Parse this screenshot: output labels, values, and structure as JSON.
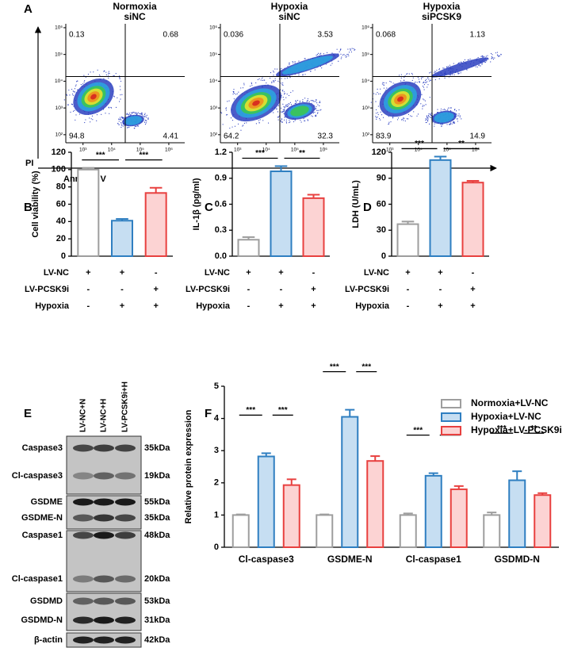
{
  "flow": {
    "panel": "A",
    "x_axis_label": "Annexin V",
    "y_axis_label": "PI",
    "log": true,
    "xlim": [
      250,
      3600000
    ],
    "ylim": [
      50,
      1400000
    ],
    "xticks": [
      {
        "value": 1000,
        "label": "10³"
      },
      {
        "value": 10000,
        "label": "10⁴"
      },
      {
        "value": 100000,
        "label": "10⁵"
      },
      {
        "value": 1000000,
        "label": "10⁶"
      }
    ],
    "yticks": [
      {
        "value": 100,
        "label": "10²"
      },
      {
        "value": 1000,
        "label": "10³"
      },
      {
        "value": 10000,
        "label": "10⁴"
      },
      {
        "value": 100000,
        "label": "10⁵"
      },
      {
        "value": 1000000,
        "label": "10⁶"
      }
    ],
    "gate": {
      "x": 30000,
      "y": 15000
    },
    "plots": [
      {
        "title": [
          "Normoxia",
          "siNC"
        ],
        "quadrants": {
          "upper_left": 0.13,
          "upper_right": 0.68,
          "lower_left": 94.8,
          "lower_right": 4.41
        }
      },
      {
        "title": [
          "Hypoxia",
          "siNC"
        ],
        "quadrants": {
          "upper_left": 0.036,
          "upper_right": 3.53,
          "lower_left": 64.2,
          "lower_right": 32.3
        }
      },
      {
        "title": [
          "Hypoxia",
          "siPCSK9"
        ],
        "quadrants": {
          "upper_left": 0.068,
          "upper_right": 1.13,
          "lower_left": 83.9,
          "lower_right": 14.9
        }
      }
    ]
  },
  "chart_data": [
    {
      "type": "bar",
      "panel": "B",
      "ylabel": "Cell viability (%)",
      "values": [
        100,
        41,
        73
      ],
      "errors": [
        2,
        2,
        6
      ],
      "colors": [
        "#9e9e9e",
        "#2f7fc1",
        "#e8403f"
      ],
      "fills": [
        "#ffffff",
        "#c6def2",
        "#fcd3d3"
      ],
      "ylim": [
        0,
        120
      ],
      "yticks": [
        0,
        20,
        40,
        60,
        80,
        100,
        120
      ],
      "significance": [
        "***",
        "***"
      ],
      "conditions": [
        {
          "label": "LV-NC",
          "signs": [
            "+",
            "+",
            "-"
          ]
        },
        {
          "label": "LV-PCSK9i",
          "signs": [
            "-",
            "-",
            "+"
          ]
        },
        {
          "label": "Hypoxia",
          "signs": [
            "-",
            "+",
            "+"
          ]
        }
      ]
    },
    {
      "type": "bar",
      "panel": "C",
      "ylabel": "IL-1β (pg/ml)",
      "values": [
        0.19,
        0.98,
        0.67
      ],
      "errors": [
        0.03,
        0.06,
        0.04
      ],
      "colors": [
        "#9e9e9e",
        "#2f7fc1",
        "#e8403f"
      ],
      "fills": [
        "#ffffff",
        "#c6def2",
        "#fcd3d3"
      ],
      "ylim": [
        0,
        1.2
      ],
      "yticks": [
        {
          "value": 0,
          "label": "0.0"
        },
        0.3,
        0.6,
        0.9,
        1.2
      ],
      "significance": [
        "***",
        "**"
      ],
      "conditions": [
        {
          "label": "LV-NC",
          "signs": [
            "+",
            "+",
            "-"
          ]
        },
        {
          "label": "LV-PCSK9i",
          "signs": [
            "-",
            "-",
            "+"
          ]
        },
        {
          "label": "Hypoxia",
          "signs": [
            "-",
            "+",
            "+"
          ]
        }
      ]
    },
    {
      "type": "bar",
      "panel": "D",
      "ylabel": "LDH  (U/mL)",
      "values": [
        37,
        111,
        85
      ],
      "errors": [
        3,
        4,
        2
      ],
      "colors": [
        "#9e9e9e",
        "#2f7fc1",
        "#e8403f"
      ],
      "fills": [
        "#ffffff",
        "#c6def2",
        "#fcd3d3"
      ],
      "ylim": [
        0,
        120
      ],
      "yticks": [
        0,
        30,
        60,
        90,
        120
      ],
      "significance": [
        "***",
        "**"
      ],
      "conditions": [
        {
          "label": "LV-NC",
          "signs": [
            "+",
            "+",
            "-"
          ]
        },
        {
          "label": "LV-PCSK9i",
          "signs": [
            "-",
            "-",
            "+"
          ]
        },
        {
          "label": "Hypoxia",
          "signs": [
            "-",
            "+",
            "+"
          ]
        }
      ]
    },
    {
      "type": "grouped_bar",
      "panel": "F",
      "ylabel": "Relative protein expression",
      "categories": [
        "Cl-caspase3",
        "GSDME-N",
        "Cl-caspase1",
        "GSDMD-N"
      ],
      "series": [
        {
          "name": "Normoxia+LV-NC",
          "color": "#9e9e9e",
          "fill": "#ffffff",
          "values": [
            1,
            1,
            1,
            1
          ],
          "errors": [
            0.02,
            0.02,
            0.05,
            0.08
          ]
        },
        {
          "name": "Hypoxia+LV-NC",
          "color": "#2f7fc1",
          "fill": "#c6def2",
          "values": [
            2.82,
            4.05,
            2.22,
            2.08
          ],
          "errors": [
            0.1,
            0.22,
            0.08,
            0.28
          ]
        },
        {
          "name": "Hypoxia+LV-PCSK9i",
          "color": "#e8403f",
          "fill": "#fcd3d3",
          "values": [
            1.93,
            2.68,
            1.8,
            1.62
          ],
          "errors": [
            0.18,
            0.15,
            0.1,
            0.06
          ]
        }
      ],
      "ylim": [
        0,
        5
      ],
      "yticks": [
        0,
        1,
        2,
        3,
        4,
        5
      ],
      "significance": [
        [
          "***",
          "***"
        ],
        [
          "***",
          "***"
        ],
        [
          "***",
          "***"
        ],
        [
          "***",
          "**"
        ]
      ]
    }
  ],
  "blot": {
    "panel": "E",
    "lanes": [
      "LV-NC+N",
      "LV-NC+H",
      "LV-PCSK9i+H"
    ],
    "rows": [
      {
        "label": "Caspase3",
        "size": "35kDa"
      },
      {
        "label": "Cl-caspase3",
        "size": "19kDa"
      },
      {
        "label": "GSDME",
        "size": "55kDa"
      },
      {
        "label": "GSDME-N",
        "size": "35kDa"
      },
      {
        "label": "Caspase1",
        "size": "48kDa"
      },
      {
        "label": "Cl-caspase1",
        "size": "20kDa"
      },
      {
        "label": "GSDMD",
        "size": "53kDa"
      },
      {
        "label": "GSDMD-N",
        "size": "31kDa"
      },
      {
        "label": "β-actin",
        "size": "42kDa"
      }
    ]
  }
}
